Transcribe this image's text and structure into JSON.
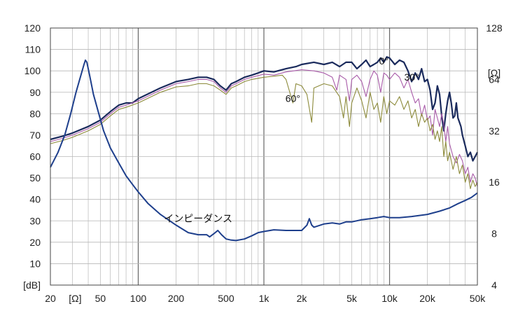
{
  "chart_data": {
    "type": "line",
    "x_scale": "log",
    "xlim": [
      20,
      50000
    ],
    "ylim": [
      0,
      120
    ],
    "y2_scale": "log",
    "y2lim": [
      4,
      128
    ],
    "grid": true,
    "x_ticks": [
      {
        "value": 20,
        "label": "20"
      },
      {
        "value": 50,
        "label": "50"
      },
      {
        "value": 100,
        "label": "100"
      },
      {
        "value": 200,
        "label": "200"
      },
      {
        "value": 500,
        "label": "500"
      },
      {
        "value": 1000,
        "label": "1k"
      },
      {
        "value": 2000,
        "label": "2k"
      },
      {
        "value": 5000,
        "label": "5k"
      },
      {
        "value": 10000,
        "label": "10k"
      },
      {
        "value": 20000,
        "label": "20k"
      },
      {
        "value": 50000,
        "label": "50k"
      }
    ],
    "x_unit_label": "[Ω]",
    "y_ticks": [
      120,
      110,
      100,
      90,
      80,
      70,
      60,
      50,
      40,
      30,
      20,
      10
    ],
    "y_unit_label": "[dB]",
    "y2_ticks": [
      128,
      64,
      32,
      16,
      8,
      4
    ],
    "y2_unit_label": "[Ω]",
    "annotations": [
      {
        "label": "0°",
        "x": 9000,
        "y": 103
      },
      {
        "label": "30°",
        "x": 15000,
        "y": 95.5
      },
      {
        "label": "60°",
        "x": 1700,
        "y": 85.5
      },
      {
        "label": "インピーダンス",
        "x": 300,
        "y": 29.5
      }
    ],
    "series": [
      {
        "label": "0°",
        "color": "#1a2a5c",
        "width": 2.2,
        "points": [
          [
            20,
            68
          ],
          [
            25,
            69.5
          ],
          [
            30,
            71
          ],
          [
            40,
            74
          ],
          [
            50,
            77
          ],
          [
            60,
            81
          ],
          [
            70,
            84
          ],
          [
            80,
            85
          ],
          [
            90,
            85
          ],
          [
            100,
            87
          ],
          [
            150,
            92
          ],
          [
            200,
            95
          ],
          [
            250,
            96
          ],
          [
            300,
            97
          ],
          [
            350,
            97
          ],
          [
            400,
            96
          ],
          [
            450,
            93
          ],
          [
            500,
            91
          ],
          [
            550,
            94
          ],
          [
            600,
            95
          ],
          [
            700,
            97
          ],
          [
            800,
            98
          ],
          [
            900,
            99
          ],
          [
            1000,
            100
          ],
          [
            1200,
            99.5
          ],
          [
            1500,
            101
          ],
          [
            1800,
            102
          ],
          [
            2000,
            103
          ],
          [
            2500,
            104
          ],
          [
            3000,
            103
          ],
          [
            3500,
            104
          ],
          [
            4000,
            102
          ],
          [
            4500,
            104
          ],
          [
            5000,
            104
          ],
          [
            5500,
            101
          ],
          [
            6000,
            103
          ],
          [
            6500,
            105
          ],
          [
            7000,
            102
          ],
          [
            7500,
            103
          ],
          [
            8000,
            104
          ],
          [
            8500,
            106
          ],
          [
            9000,
            104
          ],
          [
            9500,
            106.5
          ],
          [
            10000,
            106
          ],
          [
            11000,
            103
          ],
          [
            12000,
            105
          ],
          [
            13000,
            104
          ],
          [
            14000,
            100
          ],
          [
            15000,
            95
          ],
          [
            16000,
            99
          ],
          [
            17000,
            96
          ],
          [
            18000,
            101
          ],
          [
            19000,
            95
          ],
          [
            20000,
            96
          ],
          [
            21000,
            91
          ],
          [
            22000,
            82
          ],
          [
            23000,
            85
          ],
          [
            24000,
            93
          ],
          [
            25000,
            89
          ],
          [
            26000,
            79
          ],
          [
            27000,
            72
          ],
          [
            28000,
            80
          ],
          [
            29000,
            86
          ],
          [
            30000,
            90
          ],
          [
            31000,
            85
          ],
          [
            32000,
            78
          ],
          [
            33000,
            79
          ],
          [
            34000,
            85
          ],
          [
            35000,
            78
          ],
          [
            36000,
            76
          ],
          [
            37000,
            74
          ],
          [
            38000,
            70
          ],
          [
            40000,
            65
          ],
          [
            42000,
            60
          ],
          [
            44000,
            62
          ],
          [
            46000,
            58
          ],
          [
            48000,
            60
          ],
          [
            50000,
            62
          ]
        ]
      },
      {
        "label": "30°",
        "color": "#a85aa8",
        "width": 1.1,
        "points": [
          [
            20,
            67
          ],
          [
            25,
            68.5
          ],
          [
            30,
            70
          ],
          [
            40,
            73
          ],
          [
            50,
            76
          ],
          [
            60,
            80
          ],
          [
            70,
            83
          ],
          [
            80,
            84
          ],
          [
            100,
            86
          ],
          [
            150,
            91
          ],
          [
            200,
            94
          ],
          [
            250,
            95
          ],
          [
            300,
            96
          ],
          [
            350,
            96
          ],
          [
            400,
            95
          ],
          [
            450,
            92
          ],
          [
            500,
            90
          ],
          [
            550,
            93
          ],
          [
            600,
            94
          ],
          [
            700,
            96
          ],
          [
            800,
            97
          ],
          [
            1000,
            98.5
          ],
          [
            1200,
            98
          ],
          [
            1500,
            99.5
          ],
          [
            2000,
            100.5
          ],
          [
            2500,
            100
          ],
          [
            3000,
            99
          ],
          [
            3500,
            97
          ],
          [
            3800,
            91
          ],
          [
            4000,
            98
          ],
          [
            4500,
            96
          ],
          [
            4800,
            86
          ],
          [
            5000,
            96
          ],
          [
            5500,
            98
          ],
          [
            6000,
            95
          ],
          [
            6500,
            88
          ],
          [
            7000,
            96
          ],
          [
            7500,
            100
          ],
          [
            8000,
            98
          ],
          [
            8500,
            90
          ],
          [
            9000,
            99
          ],
          [
            9500,
            98
          ],
          [
            10000,
            96
          ],
          [
            11000,
            99
          ],
          [
            12000,
            97
          ],
          [
            13000,
            92
          ],
          [
            14000,
            96
          ],
          [
            15000,
            90
          ],
          [
            16000,
            85
          ],
          [
            17000,
            87
          ],
          [
            18000,
            79
          ],
          [
            19000,
            84
          ],
          [
            20000,
            77
          ],
          [
            21000,
            79
          ],
          [
            22000,
            70
          ],
          [
            23000,
            82
          ],
          [
            24000,
            78
          ],
          [
            25000,
            74
          ],
          [
            26000,
            80
          ],
          [
            27000,
            75
          ],
          [
            28000,
            67
          ],
          [
            29000,
            74
          ],
          [
            30000,
            66
          ],
          [
            32000,
            60
          ],
          [
            34000,
            57
          ],
          [
            36000,
            61
          ],
          [
            38000,
            58
          ],
          [
            40000,
            52
          ],
          [
            42000,
            55
          ],
          [
            44000,
            48
          ],
          [
            46000,
            52
          ],
          [
            48000,
            50
          ],
          [
            50000,
            46
          ]
        ]
      },
      {
        "label": "60°",
        "color": "#8c8a3a",
        "width": 1.1,
        "points": [
          [
            20,
            66
          ],
          [
            25,
            67.5
          ],
          [
            30,
            69
          ],
          [
            40,
            72
          ],
          [
            50,
            75
          ],
          [
            60,
            79
          ],
          [
            70,
            82
          ],
          [
            80,
            83
          ],
          [
            100,
            85
          ],
          [
            150,
            90
          ],
          [
            200,
            92.5
          ],
          [
            250,
            93
          ],
          [
            300,
            94
          ],
          [
            350,
            94
          ],
          [
            400,
            93
          ],
          [
            450,
            91
          ],
          [
            500,
            89
          ],
          [
            550,
            92
          ],
          [
            600,
            93
          ],
          [
            700,
            95
          ],
          [
            800,
            96
          ],
          [
            1000,
            97
          ],
          [
            1200,
            97.5
          ],
          [
            1400,
            98
          ],
          [
            1500,
            96
          ],
          [
            1700,
            85
          ],
          [
            1800,
            94
          ],
          [
            2000,
            93
          ],
          [
            2200,
            89
          ],
          [
            2400,
            76
          ],
          [
            2500,
            92
          ],
          [
            3000,
            94
          ],
          [
            3500,
            93
          ],
          [
            4000,
            88
          ],
          [
            4300,
            78
          ],
          [
            4500,
            88
          ],
          [
            4800,
            74
          ],
          [
            5000,
            85
          ],
          [
            5500,
            92
          ],
          [
            6000,
            86
          ],
          [
            6500,
            78
          ],
          [
            7000,
            90
          ],
          [
            7500,
            82
          ],
          [
            8000,
            85
          ],
          [
            8500,
            76
          ],
          [
            9000,
            88
          ],
          [
            9500,
            80
          ],
          [
            10000,
            86
          ],
          [
            11000,
            84
          ],
          [
            12000,
            88
          ],
          [
            13000,
            82
          ],
          [
            14000,
            86
          ],
          [
            15000,
            78
          ],
          [
            16000,
            82
          ],
          [
            17000,
            74
          ],
          [
            18000,
            80
          ],
          [
            19000,
            76
          ],
          [
            20000,
            78
          ],
          [
            21000,
            72
          ],
          [
            22000,
            75
          ],
          [
            23000,
            68
          ],
          [
            24000,
            72
          ],
          [
            25000,
            67
          ],
          [
            26000,
            74
          ],
          [
            27000,
            60
          ],
          [
            28000,
            67
          ],
          [
            29000,
            58
          ],
          [
            30000,
            62
          ],
          [
            32000,
            54
          ],
          [
            34000,
            60
          ],
          [
            36000,
            52
          ],
          [
            38000,
            56
          ],
          [
            40000,
            48
          ],
          [
            42000,
            52
          ],
          [
            44000,
            45
          ],
          [
            46000,
            49
          ],
          [
            48000,
            46
          ],
          [
            50000,
            48
          ]
        ]
      },
      {
        "label": "インピーダンス",
        "color": "#1e3f8c",
        "width": 2.0,
        "points": [
          [
            20,
            55
          ],
          [
            23,
            62
          ],
          [
            26,
            70
          ],
          [
            29,
            80
          ],
          [
            32,
            90
          ],
          [
            35,
            98
          ],
          [
            37,
            103
          ],
          [
            38,
            105
          ],
          [
            39,
            104
          ],
          [
            41,
            98
          ],
          [
            44,
            89
          ],
          [
            48,
            81
          ],
          [
            53,
            72
          ],
          [
            60,
            64
          ],
          [
            70,
            57
          ],
          [
            80,
            51
          ],
          [
            90,
            47
          ],
          [
            100,
            43.5
          ],
          [
            120,
            38
          ],
          [
            150,
            33
          ],
          [
            200,
            28
          ],
          [
            250,
            24.5
          ],
          [
            300,
            23.5
          ],
          [
            350,
            23.5
          ],
          [
            370,
            22.5
          ],
          [
            400,
            24
          ],
          [
            430,
            25.5
          ],
          [
            460,
            23.5
          ],
          [
            500,
            21.5
          ],
          [
            550,
            21
          ],
          [
            600,
            20.8
          ],
          [
            700,
            21.5
          ],
          [
            800,
            23
          ],
          [
            900,
            24.5
          ],
          [
            1000,
            25
          ],
          [
            1200,
            25.8
          ],
          [
            1500,
            25.5
          ],
          [
            1800,
            25.5
          ],
          [
            2000,
            25.5
          ],
          [
            2200,
            28
          ],
          [
            2300,
            31
          ],
          [
            2400,
            28
          ],
          [
            2500,
            27
          ],
          [
            3000,
            28.5
          ],
          [
            3500,
            29
          ],
          [
            4000,
            28.5
          ],
          [
            4500,
            29.5
          ],
          [
            5000,
            29.5
          ],
          [
            6000,
            30.5
          ],
          [
            7000,
            31
          ],
          [
            8000,
            31.5
          ],
          [
            9000,
            32
          ],
          [
            10000,
            31.5
          ],
          [
            12000,
            31.5
          ],
          [
            15000,
            32
          ],
          [
            20000,
            33
          ],
          [
            25000,
            34.5
          ],
          [
            30000,
            36
          ],
          [
            35000,
            38
          ],
          [
            40000,
            39.5
          ],
          [
            45000,
            41
          ],
          [
            50000,
            43
          ]
        ]
      }
    ]
  }
}
